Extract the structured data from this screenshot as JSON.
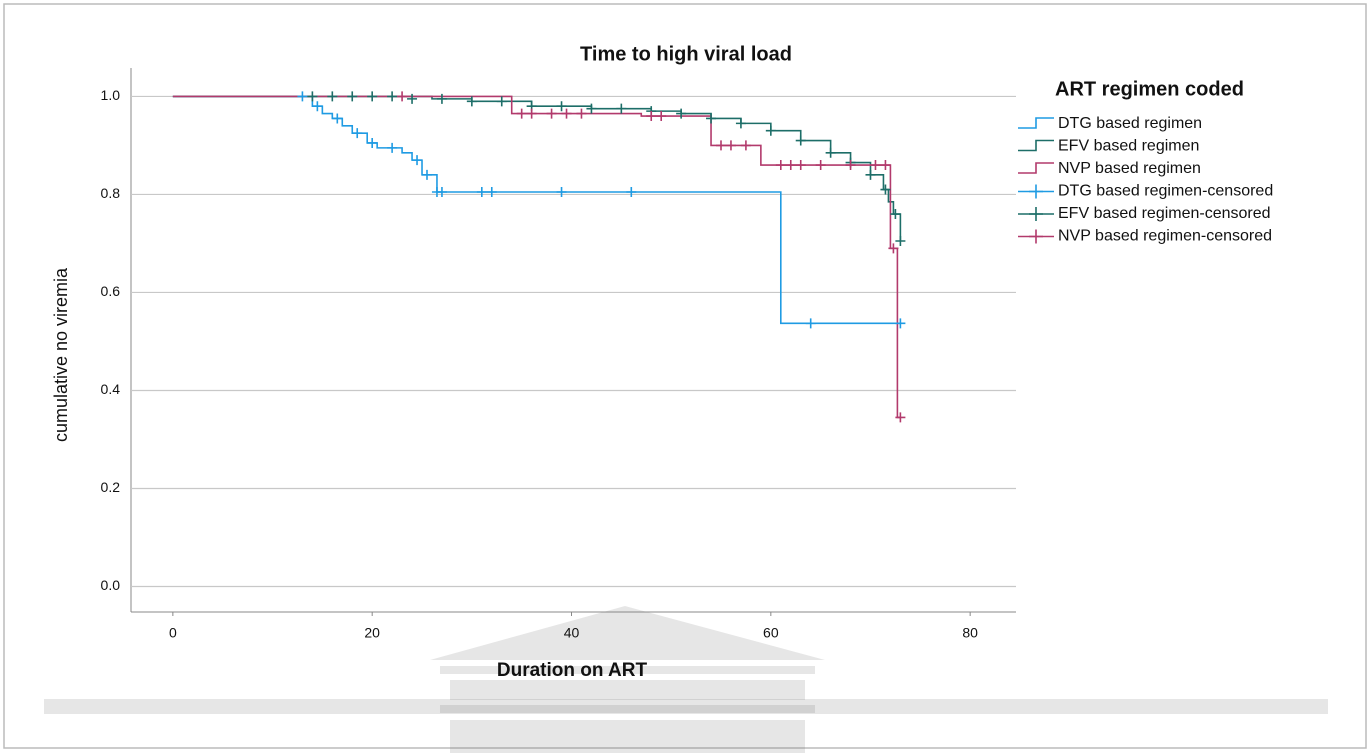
{
  "chart_data": {
    "type": "line",
    "step": true,
    "title": "Time to high viral load",
    "x_label": "Duration on ART",
    "y_label": "cumulative no viremia",
    "legend_title": "ART regimen coded",
    "legend": "right",
    "grid": true,
    "xlim": [
      -4.2,
      84.6
    ],
    "ylim": [
      -0.052,
      1.058
    ],
    "xticks": [
      0,
      20,
      40,
      60,
      80
    ],
    "yticks": [
      {
        "value": 0,
        "label": "0.0"
      },
      {
        "value": 0.2,
        "label": "0.2"
      },
      {
        "value": 0.4,
        "label": "0.4"
      },
      {
        "value": 0.6,
        "label": "0.6"
      },
      {
        "value": 0.8,
        "label": "0.8"
      },
      {
        "value": 1,
        "label": "1.0"
      }
    ],
    "series": [
      {
        "name": "DTG based regimen",
        "color": "#1f9be3",
        "style": "step",
        "x": [
          0,
          14,
          15,
          16,
          17,
          18,
          19.5,
          20.5,
          23,
          24,
          25,
          26.5,
          61,
          73
        ],
        "values": [
          1,
          0.98,
          0.965,
          0.955,
          0.94,
          0.925,
          0.905,
          0.895,
          0.885,
          0.87,
          0.84,
          0.805,
          0.537,
          0.537
        ]
      },
      {
        "name": "EFV based regimen",
        "color": "#1d6e68",
        "style": "step",
        "x": [
          0,
          22,
          26,
          30,
          36,
          42,
          48,
          51,
          54,
          57,
          60,
          63,
          66,
          68,
          70,
          71.3,
          71.8,
          72.3,
          73
        ],
        "values": [
          1,
          1,
          0.995,
          0.99,
          0.98,
          0.975,
          0.97,
          0.965,
          0.955,
          0.945,
          0.93,
          0.91,
          0.885,
          0.865,
          0.84,
          0.81,
          0.785,
          0.76,
          0.705
        ]
      },
      {
        "name": "NVP based regimen",
        "color": "#b23a6c",
        "style": "step",
        "x": [
          0,
          34,
          47,
          54,
          59,
          72,
          72.7,
          73
        ],
        "values": [
          1,
          0.965,
          0.96,
          0.9,
          0.86,
          0.69,
          0.345,
          0.345
        ]
      },
      {
        "name": "DTG based regimen-censored",
        "color": "#1f9be3",
        "style": "marker",
        "x": [
          13,
          14.5,
          16.5,
          18.5,
          20,
          22,
          24.5,
          25.5,
          26.5,
          27,
          31,
          32,
          39,
          46,
          64,
          73
        ],
        "values": [
          1,
          0.98,
          0.955,
          0.925,
          0.905,
          0.895,
          0.87,
          0.84,
          0.805,
          0.805,
          0.805,
          0.805,
          0.805,
          0.805,
          0.537,
          0.537
        ]
      },
      {
        "name": "EFV based regimen-censored",
        "color": "#1d6e68",
        "style": "marker",
        "x": [
          14,
          16,
          18,
          20,
          22,
          24,
          27,
          30,
          33,
          36,
          39,
          42,
          45,
          48,
          51,
          54,
          57,
          60,
          63,
          66,
          68,
          70,
          71.5,
          72.5,
          73
        ],
        "values": [
          1,
          1,
          1,
          1,
          1,
          0.995,
          0.995,
          0.99,
          0.99,
          0.98,
          0.98,
          0.975,
          0.975,
          0.97,
          0.965,
          0.955,
          0.945,
          0.93,
          0.91,
          0.885,
          0.865,
          0.84,
          0.81,
          0.76,
          0.705
        ]
      },
      {
        "name": "NVP based regimen-censored",
        "color": "#b23a6c",
        "style": "marker",
        "x": [
          23,
          35,
          36,
          38,
          39.5,
          41,
          48,
          49,
          55,
          56,
          57.5,
          61,
          62,
          63,
          65,
          68,
          70.5,
          71.5,
          72.3,
          73
        ],
        "values": [
          1,
          0.965,
          0.965,
          0.965,
          0.965,
          0.965,
          0.96,
          0.96,
          0.9,
          0.9,
          0.9,
          0.86,
          0.86,
          0.86,
          0.86,
          0.86,
          0.86,
          0.86,
          0.69,
          0.345
        ]
      }
    ]
  }
}
